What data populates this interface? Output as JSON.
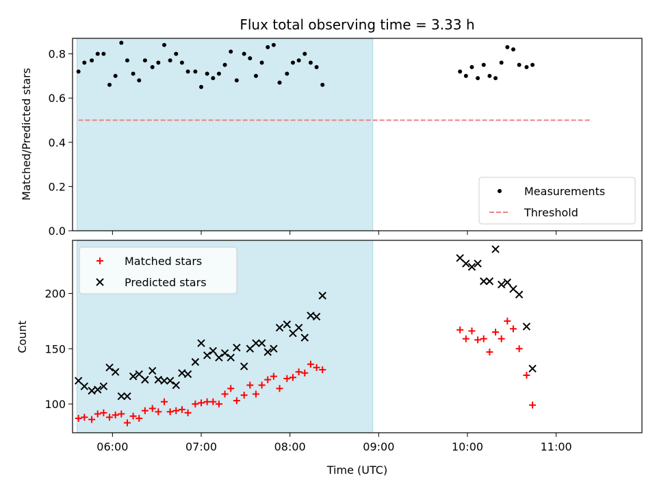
{
  "chart_data": {
    "title": "Flux total observing time = 3.33 h",
    "xlabel": "Time (UTC)",
    "x_ticks": [
      "06:00",
      "07:00",
      "08:00",
      "09:00",
      "10:00",
      "11:00"
    ],
    "x_range": [
      "05:33",
      "11:58"
    ],
    "shaded_span": {
      "start": "05:36",
      "end": "08:56",
      "color": "#add8e6"
    },
    "panels": [
      {
        "type": "scatter",
        "ylabel": "Matched/Predicted stars",
        "ylim": [
          0,
          0.87
        ],
        "y_ticks": [
          "0.0",
          "0.2",
          "0.4",
          "0.6",
          "0.8"
        ],
        "legend_position": "bottom-right",
        "series": [
          {
            "name": "Measurements",
            "marker": "dot",
            "color": "#000000",
            "points": [
              [
                "05:37",
                0.72
              ],
              [
                "05:41",
                0.76
              ],
              [
                "05:46",
                0.77
              ],
              [
                "05:50",
                0.8
              ],
              [
                "05:54",
                0.8
              ],
              [
                "05:58",
                0.66
              ],
              [
                "06:02",
                0.7
              ],
              [
                "06:06",
                0.85
              ],
              [
                "06:10",
                0.77
              ],
              [
                "06:14",
                0.71
              ],
              [
                "06:18",
                0.68
              ],
              [
                "06:22",
                0.77
              ],
              [
                "06:27",
                0.74
              ],
              [
                "06:31",
                0.76
              ],
              [
                "06:35",
                0.84
              ],
              [
                "06:39",
                0.77
              ],
              [
                "06:43",
                0.8
              ],
              [
                "06:47",
                0.76
              ],
              [
                "06:51",
                0.72
              ],
              [
                "06:56",
                0.72
              ],
              [
                "07:00",
                0.65
              ],
              [
                "07:04",
                0.71
              ],
              [
                "07:08",
                0.69
              ],
              [
                "07:12",
                0.71
              ],
              [
                "07:16",
                0.75
              ],
              [
                "07:20",
                0.81
              ],
              [
                "07:24",
                0.68
              ],
              [
                "07:29",
                0.8
              ],
              [
                "07:33",
                0.78
              ],
              [
                "07:37",
                0.7
              ],
              [
                "07:41",
                0.76
              ],
              [
                "07:45",
                0.83
              ],
              [
                "07:49",
                0.84
              ],
              [
                "07:53",
                0.67
              ],
              [
                "07:58",
                0.71
              ],
              [
                "08:02",
                0.76
              ],
              [
                "08:06",
                0.77
              ],
              [
                "08:10",
                0.8
              ],
              [
                "08:14",
                0.76
              ],
              [
                "08:18",
                0.74
              ],
              [
                "08:22",
                0.66
              ],
              [
                "09:55",
                0.72
              ],
              [
                "09:59",
                0.7
              ],
              [
                "10:03",
                0.74
              ],
              [
                "10:07",
                0.69
              ],
              [
                "10:11",
                0.75
              ],
              [
                "10:15",
                0.7
              ],
              [
                "10:19",
                0.69
              ],
              [
                "10:23",
                0.76
              ],
              [
                "10:27",
                0.83
              ],
              [
                "10:31",
                0.82
              ],
              [
                "10:35",
                0.75
              ],
              [
                "10:40",
                0.74
              ],
              [
                "10:44",
                0.75
              ]
            ]
          },
          {
            "name": "Threshold",
            "marker": "dashed-line",
            "color": "#f08080",
            "points": [
              [
                "05:37",
                0.5
              ],
              [
                "11:23",
                0.5
              ]
            ]
          }
        ]
      },
      {
        "type": "scatter",
        "ylabel": "Count",
        "ylim": [
          74,
          248
        ],
        "y_ticks": [
          "100",
          "150",
          "200"
        ],
        "legend_position": "top-left",
        "series": [
          {
            "name": "Matched stars",
            "marker": "plus",
            "color": "#ff0000",
            "points": [
              [
                "05:37",
                87
              ],
              [
                "05:41",
                88
              ],
              [
                "05:46",
                86
              ],
              [
                "05:50",
                91
              ],
              [
                "05:54",
                92
              ],
              [
                "05:58",
                88
              ],
              [
                "06:02",
                90
              ],
              [
                "06:06",
                91
              ],
              [
                "06:10",
                83
              ],
              [
                "06:14",
                89
              ],
              [
                "06:18",
                87
              ],
              [
                "06:22",
                94
              ],
              [
                "06:27",
                96
              ],
              [
                "06:31",
                93
              ],
              [
                "06:35",
                102
              ],
              [
                "06:39",
                93
              ],
              [
                "06:43",
                94
              ],
              [
                "06:47",
                95
              ],
              [
                "06:51",
                92
              ],
              [
                "06:56",
                100
              ],
              [
                "07:00",
                101
              ],
              [
                "07:04",
                102
              ],
              [
                "07:08",
                102
              ],
              [
                "07:12",
                100
              ],
              [
                "07:16",
                109
              ],
              [
                "07:20",
                114
              ],
              [
                "07:24",
                103
              ],
              [
                "07:29",
                108
              ],
              [
                "07:33",
                117
              ],
              [
                "07:37",
                109
              ],
              [
                "07:41",
                117
              ],
              [
                "07:45",
                122
              ],
              [
                "07:49",
                125
              ],
              [
                "07:53",
                114
              ],
              [
                "07:58",
                123
              ],
              [
                "08:02",
                124
              ],
              [
                "08:06",
                129
              ],
              [
                "08:10",
                128
              ],
              [
                "08:14",
                136
              ],
              [
                "08:18",
                133
              ],
              [
                "08:22",
                131
              ],
              [
                "09:55",
                167
              ],
              [
                "09:59",
                159
              ],
              [
                "10:03",
                166
              ],
              [
                "10:07",
                158
              ],
              [
                "10:11",
                159
              ],
              [
                "10:15",
                147
              ],
              [
                "10:19",
                165
              ],
              [
                "10:23",
                159
              ],
              [
                "10:27",
                175
              ],
              [
                "10:31",
                168
              ],
              [
                "10:35",
                150
              ],
              [
                "10:40",
                126
              ],
              [
                "10:44",
                99
              ]
            ]
          },
          {
            "name": "Predicted stars",
            "marker": "x",
            "color": "#000000",
            "points": [
              [
                "05:37",
                121
              ],
              [
                "05:41",
                116
              ],
              [
                "05:46",
                112
              ],
              [
                "05:50",
                113
              ],
              [
                "05:54",
                116
              ],
              [
                "05:58",
                133
              ],
              [
                "06:02",
                129
              ],
              [
                "06:06",
                107
              ],
              [
                "06:10",
                107
              ],
              [
                "06:14",
                125
              ],
              [
                "06:18",
                127
              ],
              [
                "06:22",
                122
              ],
              [
                "06:27",
                130
              ],
              [
                "06:31",
                122
              ],
              [
                "06:35",
                121
              ],
              [
                "06:39",
                121
              ],
              [
                "06:43",
                117
              ],
              [
                "06:47",
                128
              ],
              [
                "06:51",
                127
              ],
              [
                "06:56",
                138
              ],
              [
                "07:00",
                155
              ],
              [
                "07:04",
                144
              ],
              [
                "07:08",
                148
              ],
              [
                "07:12",
                142
              ],
              [
                "07:16",
                146
              ],
              [
                "07:20",
                142
              ],
              [
                "07:24",
                151
              ],
              [
                "07:29",
                134
              ],
              [
                "07:33",
                150
              ],
              [
                "07:37",
                155
              ],
              [
                "07:41",
                155
              ],
              [
                "07:45",
                147
              ],
              [
                "07:49",
                150
              ],
              [
                "07:53",
                169
              ],
              [
                "07:58",
                172
              ],
              [
                "08:02",
                164
              ],
              [
                "08:06",
                169
              ],
              [
                "08:10",
                160
              ],
              [
                "08:14",
                180
              ],
              [
                "08:18",
                179
              ],
              [
                "08:22",
                198
              ],
              [
                "09:55",
                232
              ],
              [
                "09:59",
                227
              ],
              [
                "10:03",
                224
              ],
              [
                "10:07",
                227
              ],
              [
                "10:11",
                211
              ],
              [
                "10:15",
                211
              ],
              [
                "10:19",
                240
              ],
              [
                "10:23",
                208
              ],
              [
                "10:27",
                210
              ],
              [
                "10:31",
                204
              ],
              [
                "10:35",
                199
              ],
              [
                "10:40",
                170
              ],
              [
                "10:44",
                132
              ]
            ]
          }
        ]
      }
    ]
  }
}
